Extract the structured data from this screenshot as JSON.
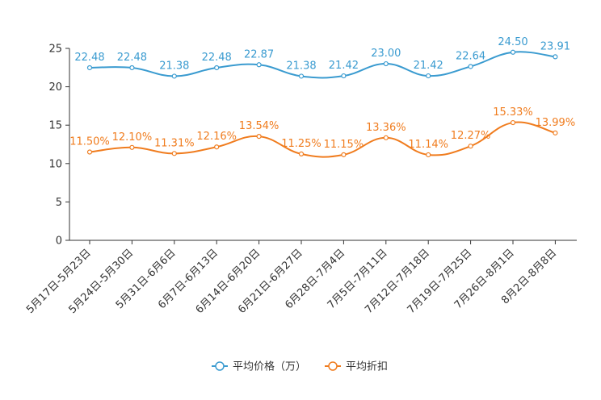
{
  "chart_data": {
    "type": "line",
    "title": "",
    "xlabel": "",
    "ylabel": "",
    "ylim": [
      0,
      25
    ],
    "yticks": [
      0,
      5,
      10,
      15,
      20,
      25
    ],
    "grid": false,
    "legend_position": "bottom-center",
    "categories": [
      "5月17日-5月23日",
      "5月24日-5月30日",
      "5月31日-6月6日",
      "6月7日-6月13日",
      "6月14日-6月20日",
      "6月21日-6月27日",
      "6月28日-7月4日",
      "7月5日-7月11日",
      "7月12日-7月18日",
      "7月19日-7月25日",
      "7月26日-8月1日",
      "8月2日-8月8日"
    ],
    "series": [
      {
        "name": "平均价格（万）",
        "color": "#3a9bd0",
        "values": [
          22.48,
          22.48,
          21.38,
          22.48,
          22.87,
          21.38,
          21.42,
          23.0,
          21.42,
          22.64,
          24.5,
          23.91
        ],
        "labels": [
          "22.48",
          "22.48",
          "21.38",
          "22.48",
          "22.87",
          "21.38",
          "21.42",
          "23.00",
          "21.42",
          "22.64",
          "24.50",
          "23.91"
        ]
      },
      {
        "name": "平均折扣",
        "color": "#f07c1e",
        "values": [
          11.5,
          12.1,
          11.31,
          12.16,
          13.54,
          11.25,
          11.15,
          13.36,
          11.14,
          12.27,
          15.33,
          13.99
        ],
        "labels": [
          "11.50%",
          "12.10%",
          "11.31%",
          "12.16%",
          "13.54%",
          "11.25%",
          "11.15%",
          "13.36%",
          "11.14%",
          "12.27%",
          "15.33%",
          "13.99%"
        ]
      }
    ]
  }
}
